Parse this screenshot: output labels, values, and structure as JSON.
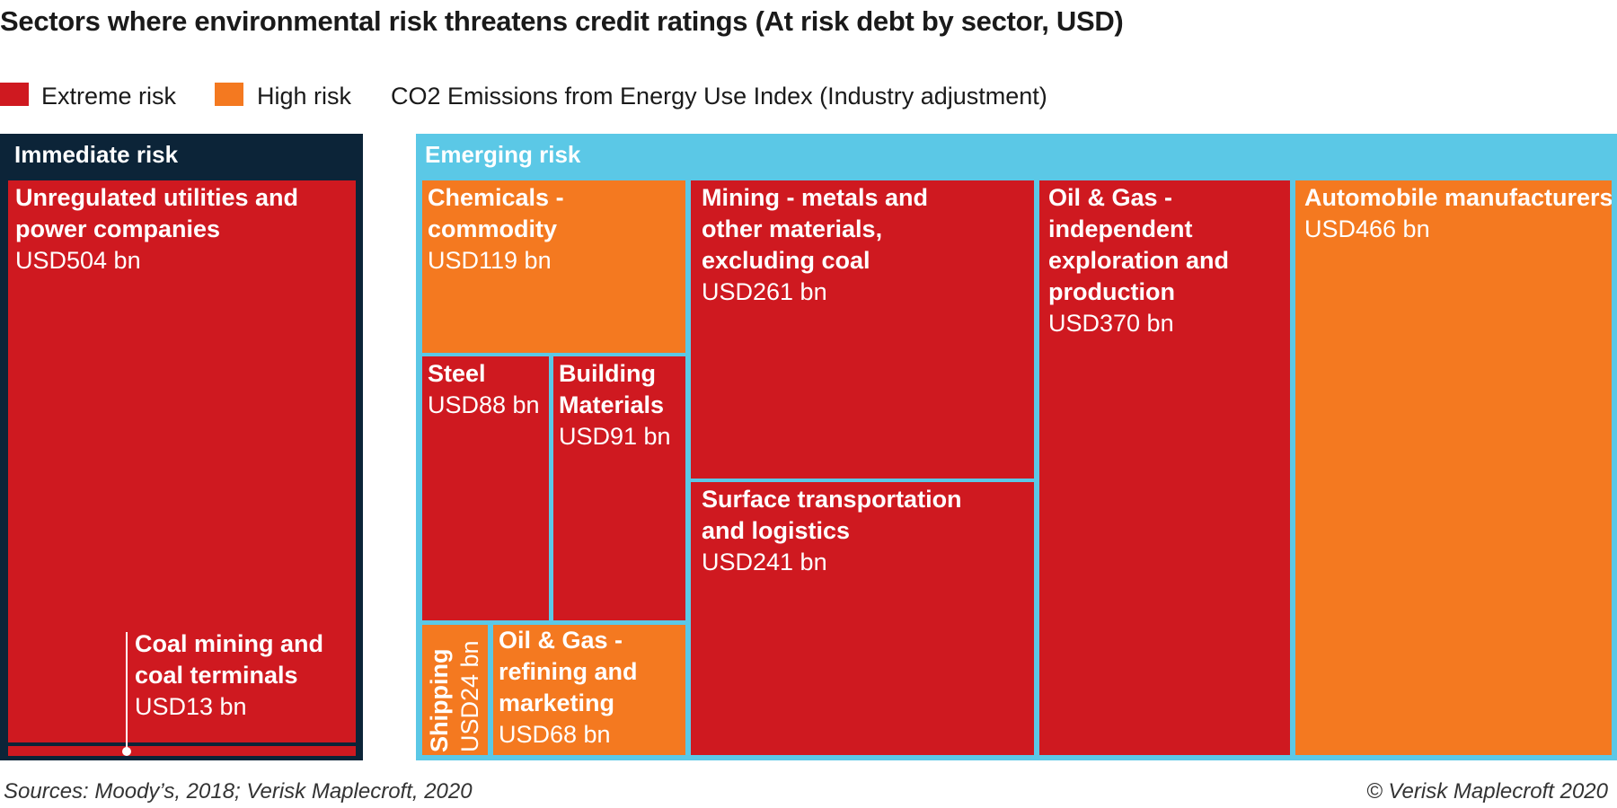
{
  "chart_data": {
    "type": "treemap",
    "title": "Sectors where environmental risk threatens credit ratings (At risk debt by sector, USD)",
    "legend": [
      {
        "label": "Extreme risk",
        "color": "#cf1920"
      },
      {
        "label": "High risk",
        "color": "#f47920"
      },
      {
        "label": "CO2 Emissions from Energy Use Index (Industry adjustment)"
      }
    ],
    "groups": [
      {
        "name": "Immediate risk",
        "color": "#0c2438",
        "items": [
          {
            "name": "Unregulated utilities and power companies",
            "value_label": "USD504 bn",
            "value": 504,
            "risk": "Extreme risk"
          },
          {
            "name": "Coal mining and coal terminals",
            "value_label": "USD13 bn",
            "value": 13,
            "risk": "Extreme risk"
          }
        ]
      },
      {
        "name": "Emerging risk",
        "color": "#5bc8e6",
        "items": [
          {
            "name": "Chemicals - commodity",
            "value_label": "USD119 bn",
            "value": 119,
            "risk": "High risk"
          },
          {
            "name": "Steel",
            "value_label": "USD88 bn",
            "value": 88,
            "risk": "Extreme risk"
          },
          {
            "name": "Building Materials",
            "value_label": "USD91 bn",
            "value": 91,
            "risk": "Extreme risk"
          },
          {
            "name": "Shipping",
            "value_label": "USD24 bn",
            "value": 24,
            "risk": "High risk"
          },
          {
            "name": "Oil & Gas - refining and marketing",
            "value_label": "USD68 bn",
            "value": 68,
            "risk": "High risk"
          },
          {
            "name": "Mining - metals and other materials, excluding coal",
            "value_label": "USD261 bn",
            "value": 261,
            "risk": "Extreme risk"
          },
          {
            "name": "Surface transportation and logistics",
            "value_label": "USD241 bn",
            "value": 241,
            "risk": "Extreme risk"
          },
          {
            "name": "Oil & Gas - independent exploration and production",
            "value_label": "USD370 bn",
            "value": 370,
            "risk": "Extreme risk"
          },
          {
            "name": "Automobile manufacturers",
            "value_label": "USD466 bn",
            "value": 466,
            "risk": "High risk"
          }
        ]
      }
    ]
  },
  "footer": {
    "source": "Sources: Moody’s, 2018; Verisk Maplecroft, 2020",
    "copyright": "© Verisk Maplecroft 2020"
  }
}
